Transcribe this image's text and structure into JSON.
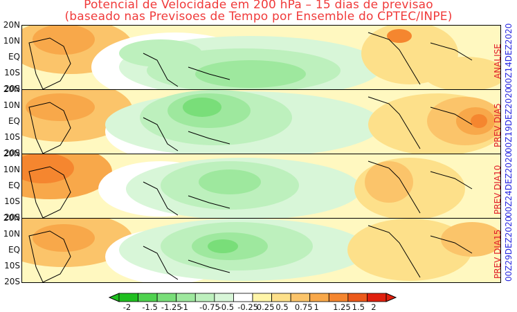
{
  "title_line1": "Potencial de Velocidade em 200 hPa – 15 dias de previsao",
  "title_line2": "(baseado nas Previsoes de Tempo por Ensemble do CPTEC/INPE)",
  "lat_labels": [
    "20N",
    "10N",
    "EQ",
    "10S",
    "20S"
  ],
  "panels": [
    {
      "label": "ANALISE",
      "date": "00Z14DEZ2020"
    },
    {
      "label": "PREV DIA5",
      "date": "00Z19DEZ2020"
    },
    {
      "label": "PREV DIA10",
      "date": "00Z24DEZ2020"
    },
    {
      "label": "PREV DIA15",
      "date": "00Z29DEZ2020"
    }
  ],
  "colorbar": {
    "labels": [
      "-2",
      "-1.5",
      "-1.25",
      "-1",
      "-0.75",
      "-0.5",
      "-0.25",
      "0.25",
      "0.5",
      "0.75",
      "1",
      "1.25",
      "1.5",
      "2"
    ],
    "colors": [
      "#1fbf1f",
      "#4fd24f",
      "#79de79",
      "#9ee89e",
      "#bdf0bd",
      "#d8f6d8",
      "#ffffff",
      "#fff5a8",
      "#fde08a",
      "#fbc46a",
      "#f8a84a",
      "#f5862f",
      "#ec5a1b",
      "#e0200e"
    ]
  },
  "colors": {
    "title": "#f03a3a",
    "panel_label": "#e0202a",
    "date_label": "#2a2ae0",
    "positive": "#f5862f",
    "negative": "#4fd24f"
  }
}
